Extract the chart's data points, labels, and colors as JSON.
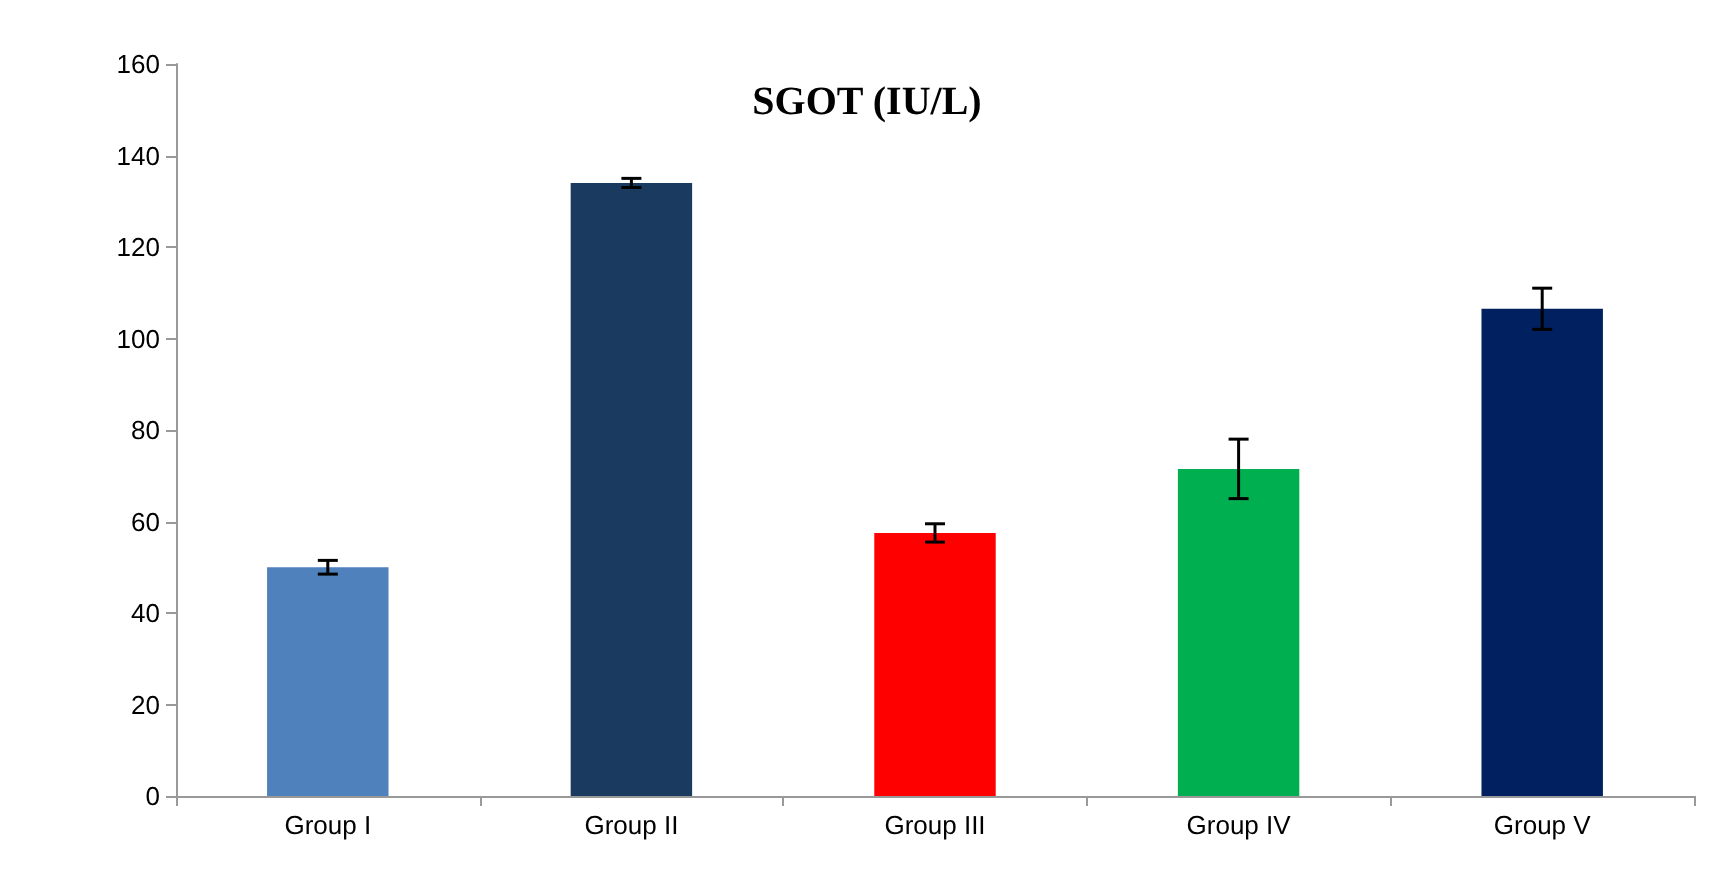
{
  "chart_data": {
    "type": "bar",
    "title": "SGOT (IU/L)",
    "categories": [
      "Group I",
      "Group II",
      "Group III",
      "Group IV",
      "Group V"
    ],
    "values": [
      50,
      134,
      57.5,
      71.5,
      106.5
    ],
    "colors": [
      "#4f81bd",
      "#1b3a5f",
      "#ff0000",
      "#00b050",
      "#002060"
    ],
    "errors": [
      1.5,
      1,
      2,
      6.5,
      4.5
    ],
    "ylim": [
      0,
      160
    ],
    "yticks": [
      0,
      20,
      40,
      60,
      80,
      100,
      120,
      140,
      160
    ],
    "grid": false
  }
}
